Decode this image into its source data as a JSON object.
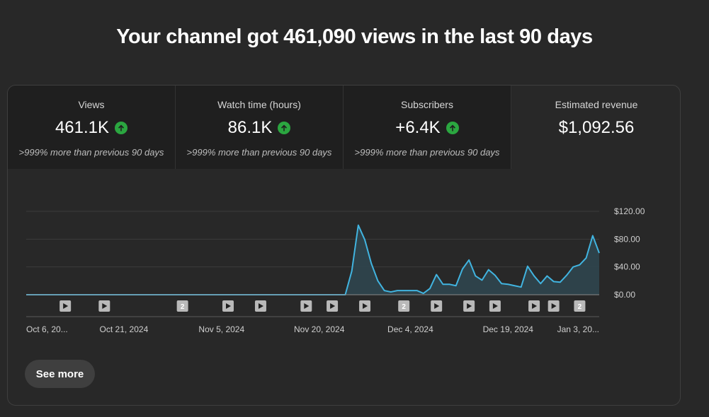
{
  "headline": "Your channel got 461,090 views in the last 90 days",
  "tabs": [
    {
      "title": "Views",
      "value": "461.1K",
      "change": ">999% more than previous 90 days",
      "trend": "up"
    },
    {
      "title": "Watch time (hours)",
      "value": "86.1K",
      "change": ">999% more than previous 90 days",
      "trend": "up"
    },
    {
      "title": "Subscribers",
      "value": "+6.4K",
      "change": ">999% more than previous 90 days",
      "trend": "up"
    },
    {
      "title": "Estimated revenue",
      "value": "$1,092.56",
      "change": "",
      "trend": ""
    }
  ],
  "colors": {
    "up": "#2ba640",
    "line": "#41b4e0",
    "area": "#2f4650"
  },
  "chart_data": {
    "type": "area",
    "ylabel_ticks": [
      "$120.00",
      "$80.00",
      "$40.00",
      "$0.00"
    ],
    "ylim": [
      0,
      120
    ],
    "xtick_labels": [
      "Oct 6, 20...",
      "Oct 21, 2024",
      "Nov 5, 2024",
      "Nov 20, 2024",
      "Dec 4, 2024",
      "Dec 19, 2024",
      "Jan 3, 20..."
    ],
    "series": [
      {
        "values": [
          0,
          0,
          0,
          0,
          0,
          0,
          0,
          0,
          0,
          0,
          0,
          0,
          0,
          0,
          0,
          0,
          0,
          0,
          0,
          0,
          0,
          0,
          0,
          0,
          0,
          0,
          0,
          0,
          0,
          0,
          0,
          0,
          0,
          0,
          0,
          0,
          0,
          0,
          0,
          0,
          0,
          0,
          0,
          0,
          0,
          0,
          0,
          0,
          0,
          0,
          34,
          100,
          79,
          45,
          20,
          6,
          4,
          6,
          6,
          6,
          6,
          2,
          9,
          29,
          15,
          15,
          13,
          37,
          50,
          27,
          21,
          36,
          28,
          16,
          15,
          13,
          11,
          41,
          27,
          16,
          27,
          19,
          18,
          28,
          40,
          43,
          53,
          85,
          60
        ]
      }
    ],
    "markers": [
      {
        "day": 6,
        "label": ""
      },
      {
        "day": 12,
        "label": ""
      },
      {
        "day": 24,
        "label": "2"
      },
      {
        "day": 31,
        "label": ""
      },
      {
        "day": 36,
        "label": ""
      },
      {
        "day": 43,
        "label": ""
      },
      {
        "day": 47,
        "label": ""
      },
      {
        "day": 52,
        "label": ""
      },
      {
        "day": 58,
        "label": "2"
      },
      {
        "day": 63,
        "label": ""
      },
      {
        "day": 68,
        "label": ""
      },
      {
        "day": 72,
        "label": ""
      },
      {
        "day": 78,
        "label": ""
      },
      {
        "day": 81,
        "label": ""
      },
      {
        "day": 85,
        "label": "2"
      }
    ]
  },
  "see_more": "See more"
}
